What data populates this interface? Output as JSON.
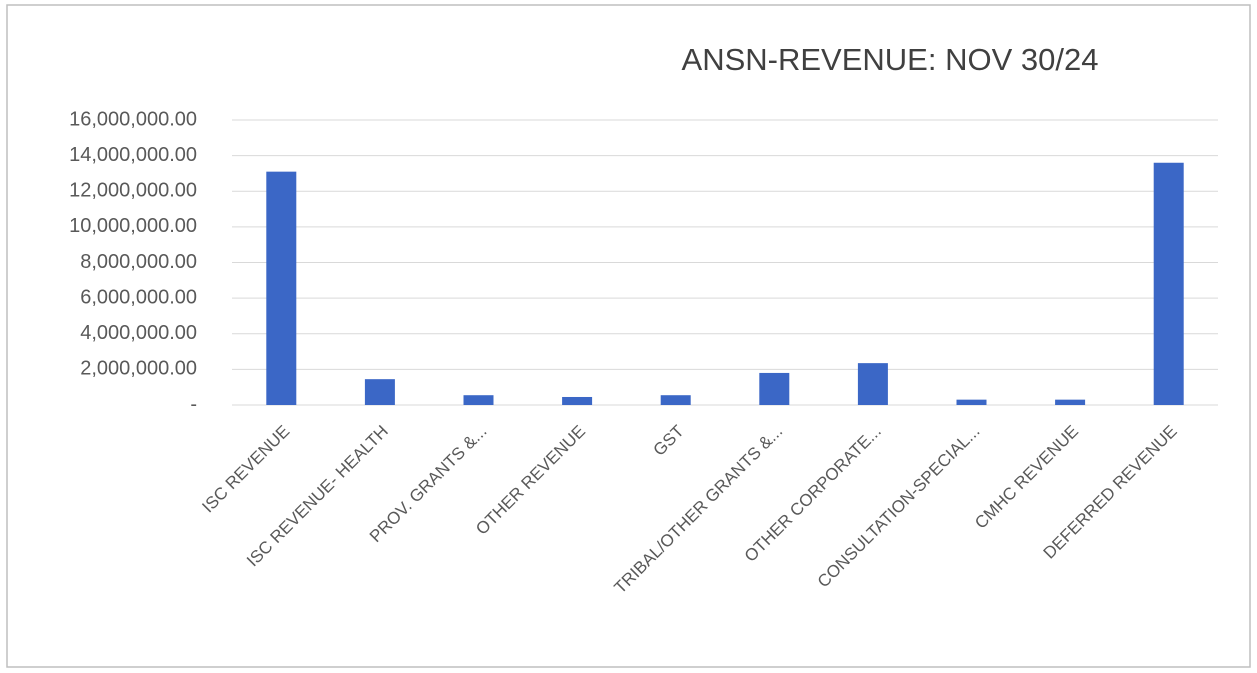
{
  "chart_data": {
    "type": "bar",
    "title": "ANSN-REVENUE: NOV 30/24",
    "categories": [
      "ISC REVENUE",
      "ISC REVENUE- HEALTH",
      "PROV. GRANTS &...",
      "OTHER REVENUE",
      "GST",
      "TRIBAL/OTHER GRANTS &...",
      "OTHER CORPORATE...",
      "CONSULTATION-SPECIAL...",
      "CMHC REVENUE",
      "DEFERRED REVENUE"
    ],
    "values": [
      13100000,
      1450000,
      550000,
      450000,
      550000,
      1800000,
      2350000,
      300000,
      300000,
      13600000
    ],
    "color": "#3b67c6",
    "ylim": [
      0,
      16000000
    ],
    "yticks": [
      {
        "value": 0,
        "label": "-"
      },
      {
        "value": 2000000,
        "label": "2,000,000.00"
      },
      {
        "value": 4000000,
        "label": "4,000,000.00"
      },
      {
        "value": 6000000,
        "label": "6,000,000.00"
      },
      {
        "value": 8000000,
        "label": "8,000,000.00"
      },
      {
        "value": 10000000,
        "label": "10,000,000.00"
      },
      {
        "value": 12000000,
        "label": "12,000,000.00"
      },
      {
        "value": 14000000,
        "label": "14,000,000.00"
      },
      {
        "value": 16000000,
        "label": "16,000,000.00"
      }
    ],
    "grid": true
  }
}
